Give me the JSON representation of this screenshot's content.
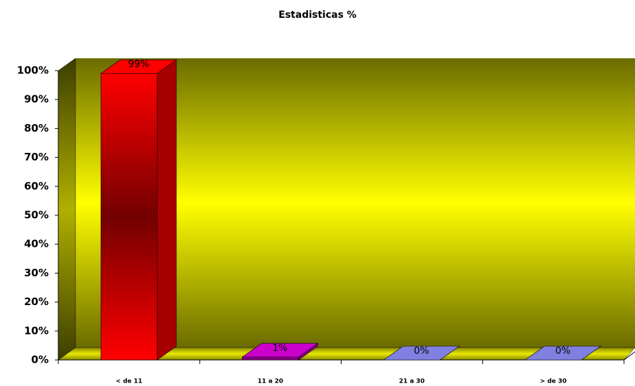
{
  "chart_data": {
    "type": "bar3d",
    "title": "Estadisticas %",
    "categories": [
      "< de 11",
      "11 a 20",
      "21 a 30",
      "> de 30"
    ],
    "values": [
      99,
      1,
      0,
      0
    ],
    "value_labels": [
      "99%",
      "1%",
      "0%",
      "0%"
    ],
    "colors": [
      "#ff0000",
      "#cc00cc",
      "#8080e0",
      "#8080e0"
    ],
    "ylim": [
      0,
      100
    ],
    "yticks": [
      {
        "value": 0,
        "label": "0%"
      },
      {
        "value": 10,
        "label": "10%"
      },
      {
        "value": 20,
        "label": "20%"
      },
      {
        "value": 30,
        "label": "30%"
      },
      {
        "value": 40,
        "label": "40%"
      },
      {
        "value": 50,
        "label": "50%"
      },
      {
        "value": 60,
        "label": "60%"
      },
      {
        "value": 70,
        "label": "70%"
      },
      {
        "value": 80,
        "label": "80%"
      },
      {
        "value": 90,
        "label": "90%"
      },
      {
        "value": 100,
        "label": "100%"
      }
    ]
  }
}
